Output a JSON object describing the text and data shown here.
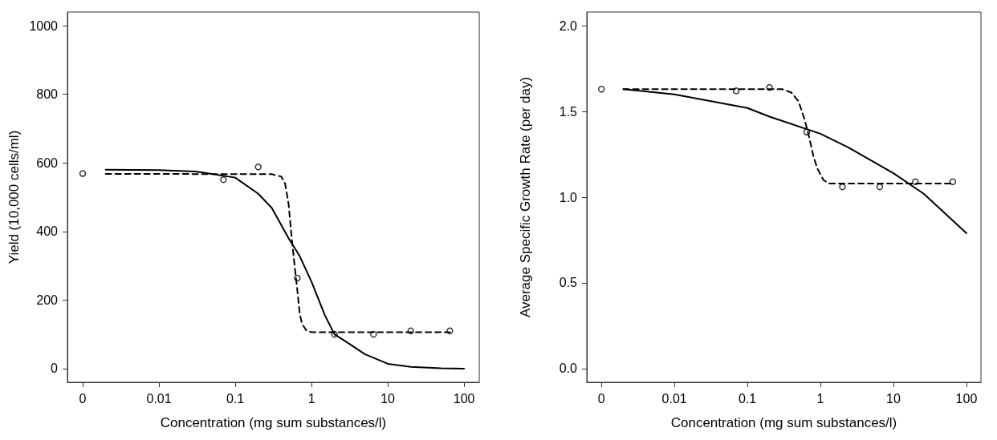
{
  "chart_data": [
    {
      "type": "line",
      "xlabel": "Concentration (mg sum substances/l)",
      "ylabel": "Yield (10,000 cells/ml)",
      "log": "x",
      "grid": false,
      "xlim": [
        0.00063,
        158
      ],
      "xticks": [
        {
          "value": 0.001,
          "label": "0"
        },
        0.01,
        0.1,
        1,
        10,
        100
      ],
      "ylim": [
        -40,
        1040
      ],
      "yticks": [
        0,
        200,
        400,
        600,
        800,
        1000
      ],
      "series": [
        {
          "type": "scatter",
          "marker": "circle",
          "color": "#000000",
          "x": [
            0.001,
            0.07,
            0.2,
            0.65,
            2,
            6.5,
            20,
            65
          ],
          "values": [
            569,
            551,
            588,
            264,
            100,
            100,
            110,
            110
          ]
        },
        {
          "line_style": "solid",
          "marker": "none",
          "color": "#000000",
          "x": [
            0.002,
            0.01,
            0.03,
            0.1,
            0.2,
            0.3,
            0.5,
            0.7,
            1,
            1.5,
            2,
            3,
            5,
            10,
            20,
            50,
            100
          ],
          "values": [
            580,
            579,
            575,
            557,
            510,
            469,
            380,
            328,
            253,
            155,
            100,
            75,
            42,
            14,
            5,
            1,
            0
          ]
        },
        {
          "line_style": "dashed",
          "marker": "none",
          "color": "#000000",
          "x": [
            0.002,
            0.3,
            0.4,
            0.45,
            0.5,
            0.55,
            0.6,
            0.65,
            0.7,
            0.75,
            0.85,
            1,
            2,
            65
          ],
          "values": [
            568,
            567,
            560,
            540,
            480,
            380,
            300,
            230,
            160,
            131,
            112,
            106,
            106,
            106
          ]
        }
      ]
    },
    {
      "type": "line",
      "xlabel": "Concentration (mg sum substances/l)",
      "ylabel": "Average Specific Growth Rate (per day)",
      "log": "x",
      "grid": false,
      "xlim": [
        0.00063,
        158
      ],
      "xticks": [
        {
          "value": 0.001,
          "label": "0"
        },
        0.01,
        0.1,
        1,
        10,
        100
      ],
      "ylim": [
        -0.08,
        2.08
      ],
      "yticks": [
        {
          "value": 0,
          "label": "0.0"
        },
        0.5,
        {
          "value": 1,
          "label": "1.0"
        },
        1.5,
        {
          "value": 2,
          "label": "2.0"
        }
      ],
      "series": [
        {
          "type": "scatter",
          "marker": "circle",
          "color": "#000000",
          "x": [
            0.001,
            0.07,
            0.2,
            0.65,
            2,
            6.5,
            20,
            65
          ],
          "values": [
            1.63,
            1.62,
            1.64,
            1.38,
            1.06,
            1.06,
            1.09,
            1.09
          ]
        },
        {
          "line_style": "solid",
          "marker": "none",
          "color": "#000000",
          "x": [
            0.002,
            0.01,
            0.1,
            0.2,
            1,
            2.4,
            10,
            26,
            100
          ],
          "values": [
            1.63,
            1.6,
            1.52,
            1.47,
            1.37,
            1.29,
            1.14,
            1.02,
            0.79
          ]
        },
        {
          "line_style": "dashed",
          "marker": "none",
          "color": "#000000",
          "x": [
            0.002,
            0.3,
            0.4,
            0.5,
            0.6,
            0.7,
            0.8,
            0.9,
            1.1,
            1.3,
            2,
            65
          ],
          "values": [
            1.63,
            1.63,
            1.61,
            1.56,
            1.46,
            1.35,
            1.24,
            1.17,
            1.1,
            1.08,
            1.08,
            1.08
          ]
        }
      ]
    }
  ]
}
